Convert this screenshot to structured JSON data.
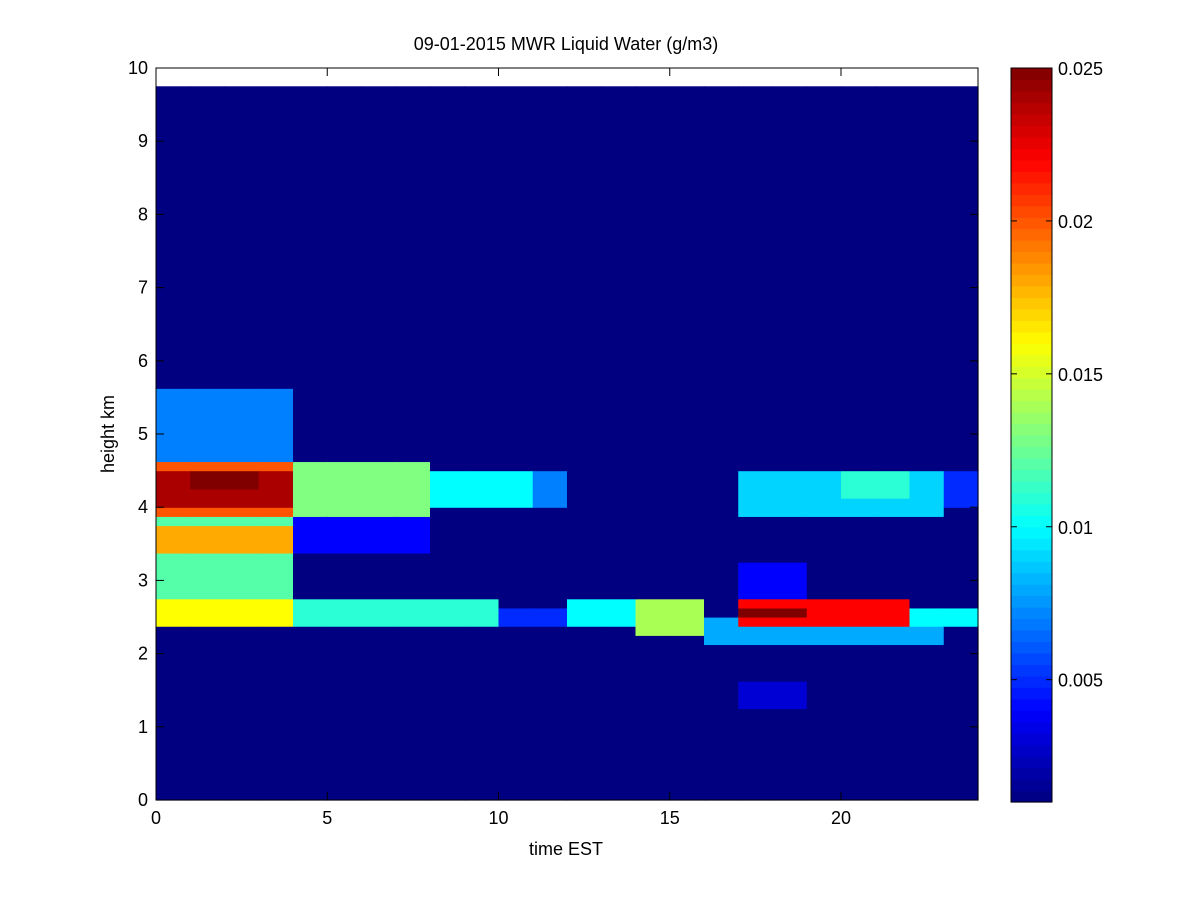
{
  "chart_data": {
    "type": "heatmap",
    "title": "09-01-2015 MWR Liquid Water (g/m3)",
    "xlabel": "time EST",
    "ylabel": "height km",
    "xlim": [
      0,
      24
    ],
    "ylim": [
      0,
      10
    ],
    "x_ticks": [
      0,
      5,
      10,
      15,
      20
    ],
    "y_ticks": [
      0,
      1,
      2,
      3,
      4,
      5,
      6,
      7,
      8,
      9,
      10
    ],
    "colormap": "jet",
    "color_range": [
      0.001,
      0.025
    ],
    "colorbar_ticks": [
      0.005,
      0.01,
      0.015,
      0.02,
      0.025
    ],
    "colorbar_tick_labels": [
      "0.005",
      "0.01",
      "0.015",
      "0.02",
      "0.025"
    ],
    "data_extent": {
      "x": [
        0,
        23.5
      ],
      "y": [
        0,
        9.75
      ]
    },
    "time_step_hours": 1,
    "height_step_km": 0.125,
    "background_value": 0.001,
    "features": [
      {
        "t": [
          0,
          3
        ],
        "h": [
          4.0,
          4.375
        ],
        "value": 0.024
      },
      {
        "t": [
          0,
          3
        ],
        "h": [
          3.875,
          4.5
        ],
        "value": 0.02
      },
      {
        "t": [
          0,
          3
        ],
        "h": [
          3.375,
          3.625
        ],
        "value": 0.018
      },
      {
        "t": [
          0,
          3
        ],
        "h": [
          2.75,
          3.875
        ],
        "value": 0.012
      },
      {
        "t": [
          0,
          3
        ],
        "h": [
          4.5,
          5.5
        ],
        "value": 0.007
      },
      {
        "t": [
          1,
          2
        ],
        "h": [
          4.25,
          4.375
        ],
        "value": 0.025
      },
      {
        "t": [
          4,
          7
        ],
        "h": [
          3.875,
          4.5
        ],
        "value": 0.013
      },
      {
        "t": [
          8,
          10
        ],
        "h": [
          4.0,
          4.375
        ],
        "value": 0.01
      },
      {
        "t": [
          11,
          11
        ],
        "h": [
          4.0,
          4.375
        ],
        "value": 0.007
      },
      {
        "t": [
          4,
          7
        ],
        "h": [
          3.375,
          3.75
        ],
        "value": 0.004
      },
      {
        "t": [
          0,
          3
        ],
        "h": [
          2.375,
          2.625
        ],
        "value": 0.016
      },
      {
        "t": [
          4,
          9
        ],
        "h": [
          2.375,
          2.625
        ],
        "value": 0.011
      },
      {
        "t": [
          10,
          11
        ],
        "h": [
          2.375,
          2.5
        ],
        "value": 0.005
      },
      {
        "t": [
          12,
          13
        ],
        "h": [
          2.375,
          2.625
        ],
        "value": 0.01
      },
      {
        "t": [
          14,
          15
        ],
        "h": [
          2.25,
          2.625
        ],
        "value": 0.014
      },
      {
        "t": [
          17,
          21
        ],
        "h": [
          2.375,
          2.625
        ],
        "value": 0.022
      },
      {
        "t": [
          17,
          18
        ],
        "h": [
          2.5,
          2.5
        ],
        "value": 0.025
      },
      {
        "t": [
          22,
          23
        ],
        "h": [
          2.375,
          2.5
        ],
        "value": 0.01
      },
      {
        "t": [
          16,
          22
        ],
        "h": [
          2.125,
          2.375
        ],
        "value": 0.008
      },
      {
        "t": [
          17,
          18
        ],
        "h": [
          2.625,
          3.125
        ],
        "value": 0.004
      },
      {
        "t": [
          17,
          18
        ],
        "h": [
          1.25,
          1.5
        ],
        "value": 0.003
      },
      {
        "t": [
          17,
          22
        ],
        "h": [
          3.875,
          4.375
        ],
        "value": 0.009
      },
      {
        "t": [
          20,
          21
        ],
        "h": [
          4.125,
          4.375
        ],
        "value": 0.011
      },
      {
        "t": [
          23,
          23
        ],
        "h": [
          4.0,
          4.375
        ],
        "value": 0.005
      }
    ]
  }
}
